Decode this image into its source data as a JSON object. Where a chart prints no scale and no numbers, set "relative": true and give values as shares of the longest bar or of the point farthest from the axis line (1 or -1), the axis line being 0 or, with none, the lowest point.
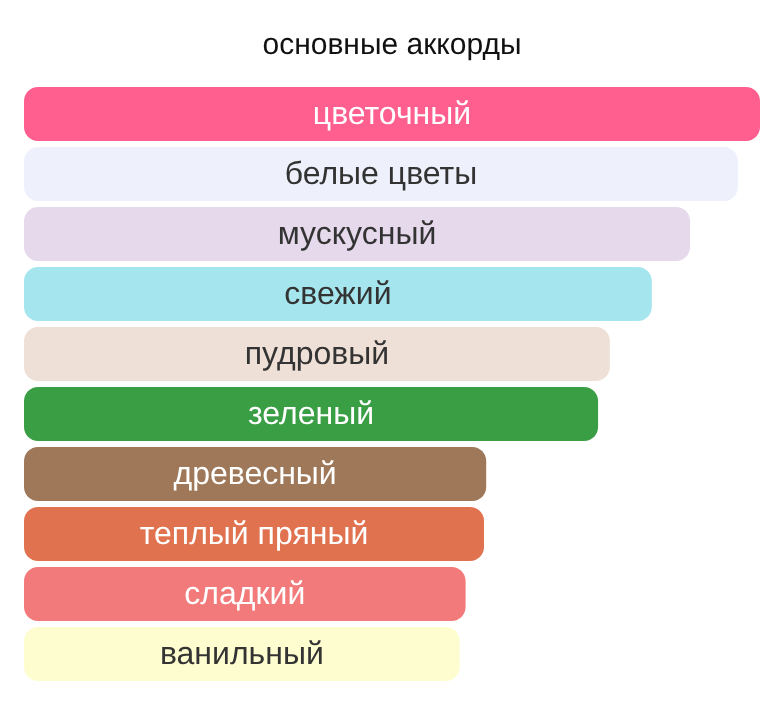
{
  "chart_data": {
    "type": "bar",
    "orientation": "horizontal",
    "relative": true,
    "title": "основные аккорды",
    "categories": [
      "цветочный",
      "белые цветы",
      "мускусный",
      "свежий",
      "пудровый",
      "зеленый",
      "древесный",
      "теплый пряный",
      "сладкий",
      "ванильный"
    ],
    "values": [
      1,
      0.97,
      0.905,
      0.853,
      0.796,
      0.78,
      0.628,
      0.625,
      0.6,
      0.592
    ],
    "colors": [
      "#ff5f8f",
      "#eef1fb",
      "#e6d9ec",
      "#a5e5ee",
      "#eee0d6",
      "#3a9e45",
      "#9e7858",
      "#e0724f",
      "#f27a7a",
      "#fefdd0"
    ]
  }
}
